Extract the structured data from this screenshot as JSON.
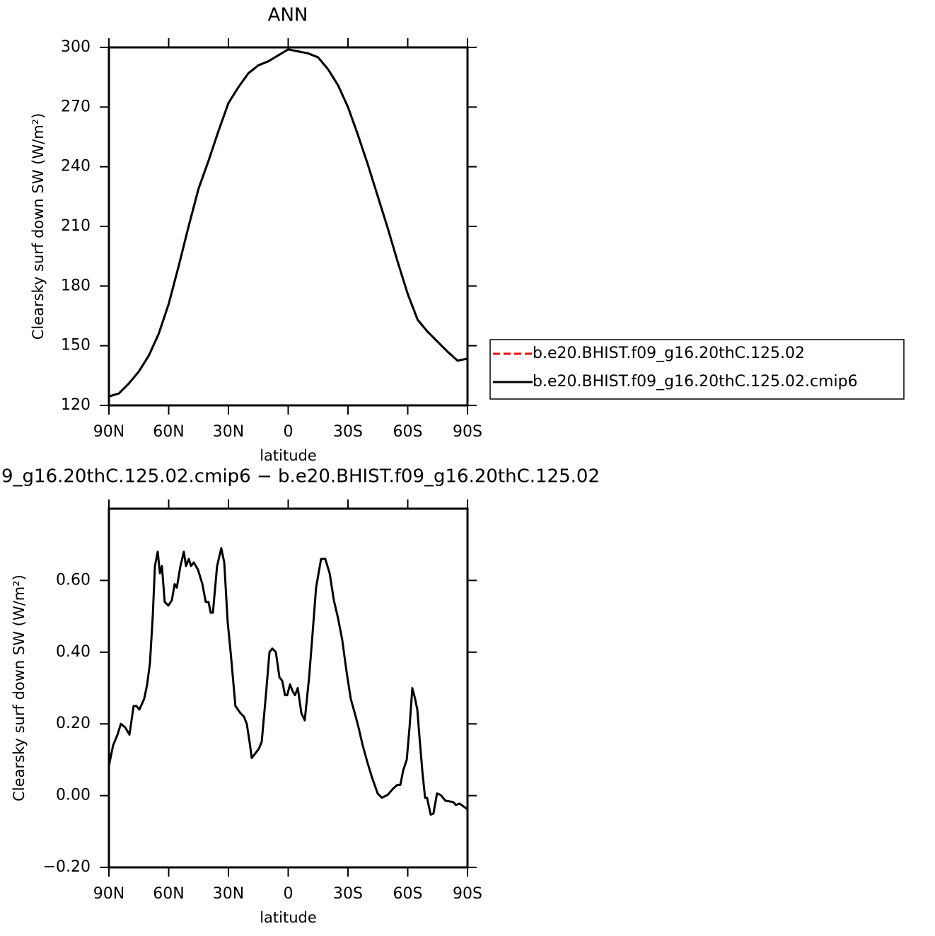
{
  "chart_data": [
    {
      "type": "line",
      "title": "ANN",
      "x_label": "latitude",
      "y_label": "Clearsky surf down SW (W/m²)",
      "x": [
        90,
        85,
        80,
        75,
        70,
        65,
        60,
        55,
        50,
        45,
        40,
        35,
        30,
        25,
        20,
        15,
        10,
        5,
        0,
        -5,
        -10,
        -15,
        -20,
        -25,
        -30,
        -35,
        -40,
        -45,
        -50,
        -55,
        -60,
        -65,
        -70,
        -75,
        -80,
        -85,
        -90
      ],
      "series": [
        {
          "name": "b.e20.BHIST.f09_g16.20thC.125.02",
          "color": "#ff0000",
          "dashed": true,
          "values": [
            124.5,
            126,
            131,
            137,
            145,
            156,
            171,
            190,
            210,
            229,
            243,
            258,
            272,
            280,
            287,
            291,
            293,
            296,
            299,
            298,
            297,
            295,
            289,
            281,
            270,
            256,
            241,
            225,
            209,
            192,
            176,
            163,
            157,
            152,
            147,
            142.5,
            143.5
          ]
        },
        {
          "name": "b.e20.BHIST.f09_g16.20thC.125.02.cmip6",
          "color": "#000000",
          "dashed": false,
          "values": [
            124.5,
            126,
            131,
            137,
            145,
            156,
            171,
            190,
            210,
            229,
            243,
            258,
            272,
            280,
            287,
            291,
            293,
            296,
            299,
            298,
            297,
            295,
            289,
            281,
            270,
            256,
            241,
            225,
            209,
            192,
            176,
            163,
            157,
            152,
            147,
            142.5,
            143.5
          ]
        }
      ],
      "xlim": [
        90,
        -90
      ],
      "xticks": [
        {
          "value": 90,
          "label": "90N"
        },
        {
          "value": 60,
          "label": "60N"
        },
        {
          "value": 30,
          "label": "30N"
        },
        0,
        {
          "value": -30,
          "label": "30S"
        },
        {
          "value": -60,
          "label": "60S"
        },
        {
          "value": -90,
          "label": "90S"
        }
      ],
      "ylim": [
        120,
        300
      ],
      "yticks": [
        120,
        150,
        180,
        210,
        240,
        270,
        300
      ],
      "legend": "right"
    },
    {
      "type": "line",
      "title": "9_g16.20thC.125.02.cmip6 − b.e20.BHIST.f09_g16.20thC.125.02",
      "x_label": "latitude",
      "y_label": "Clearsky surf down SW (W/m²)",
      "x": [
        90,
        87.9,
        85.7,
        84,
        81.8,
        79.7,
        77.6,
        76.2,
        74.7,
        72.3,
        70.8,
        69.4,
        68,
        66.9,
        65.5,
        64.4,
        63.4,
        62,
        60.2,
        58.4,
        57,
        55.9,
        54.1,
        52.4,
        51.3,
        49.9,
        48.8,
        47.4,
        45.3,
        43.1,
        41.4,
        40,
        38.9,
        37.8,
        35.7,
        33.6,
        32.1,
        30.4,
        28.9,
        26.5,
        24,
        22.2,
        20.8,
        19.4,
        18.3,
        16.9,
        14.8,
        13.3,
        11.2,
        9.4,
        8,
        6.2,
        4.4,
        3,
        1.6,
        0.5,
        -0.9,
        -2.3,
        -3.4,
        -4.8,
        -6.6,
        -8.3,
        -10.5,
        -12.2,
        -14,
        -16.5,
        -18.6,
        -20.8,
        -22.9,
        -25,
        -27.1,
        -29.3,
        -31.4,
        -33.9,
        -35.3,
        -37.4,
        -39.9,
        -42.1,
        -44.9,
        -47,
        -49.9,
        -52.7,
        -54.8,
        -56.3,
        -57.7,
        -59.5,
        -60.9,
        -62.3,
        -63.7,
        -64.8,
        -65.8,
        -67.3,
        -68.7,
        -69.7,
        -71.5,
        -72.9,
        -74.7,
        -76.5,
        -78.9,
        -82.8,
        -84.2,
        -86,
        -90
      ],
      "values": [
        0.083,
        0.14,
        0.17,
        0.2,
        0.19,
        0.17,
        0.25,
        0.25,
        0.24,
        0.27,
        0.31,
        0.37,
        0.5,
        0.64,
        0.68,
        0.62,
        0.64,
        0.54,
        0.53,
        0.545,
        0.59,
        0.58,
        0.64,
        0.68,
        0.64,
        0.66,
        0.64,
        0.65,
        0.63,
        0.59,
        0.54,
        0.54,
        0.51,
        0.51,
        0.64,
        0.69,
        0.65,
        0.485,
        0.4,
        0.25,
        0.23,
        0.22,
        0.2,
        0.15,
        0.105,
        0.115,
        0.13,
        0.15,
        0.28,
        0.4,
        0.41,
        0.4,
        0.33,
        0.32,
        0.28,
        0.28,
        0.31,
        0.29,
        0.28,
        0.3,
        0.23,
        0.21,
        0.33,
        0.45,
        0.58,
        0.66,
        0.66,
        0.62,
        0.545,
        0.495,
        0.435,
        0.345,
        0.27,
        0.22,
        0.19,
        0.14,
        0.09,
        0.05,
        0.006,
        -0.006,
        0.002,
        0.02,
        0.03,
        0.03,
        0.07,
        0.1,
        0.19,
        0.3,
        0.27,
        0.24,
        0.17,
        0.07,
        -0.006,
        -0.006,
        -0.053,
        -0.05,
        0.006,
        0.002,
        -0.014,
        -0.018,
        -0.026,
        -0.022,
        -0.038
      ],
      "color": "#000000",
      "xlim": [
        90,
        -90
      ],
      "xticks": [
        {
          "value": 90,
          "label": "90N"
        },
        {
          "value": 60,
          "label": "60N"
        },
        {
          "value": 30,
          "label": "30N"
        },
        0,
        {
          "value": -30,
          "label": "30S"
        },
        {
          "value": -60,
          "label": "60S"
        },
        {
          "value": -90,
          "label": "90S"
        }
      ],
      "ylim": [
        -0.2,
        0.8
      ],
      "yticks": [
        {
          "value": -0.2,
          "label": "−0.20"
        },
        {
          "value": 0,
          "label": "0.00"
        },
        {
          "value": 0.2,
          "label": "0.20"
        },
        {
          "value": 0.4,
          "label": "0.40"
        },
        {
          "value": 0.6,
          "label": "0.60"
        }
      ]
    }
  ]
}
